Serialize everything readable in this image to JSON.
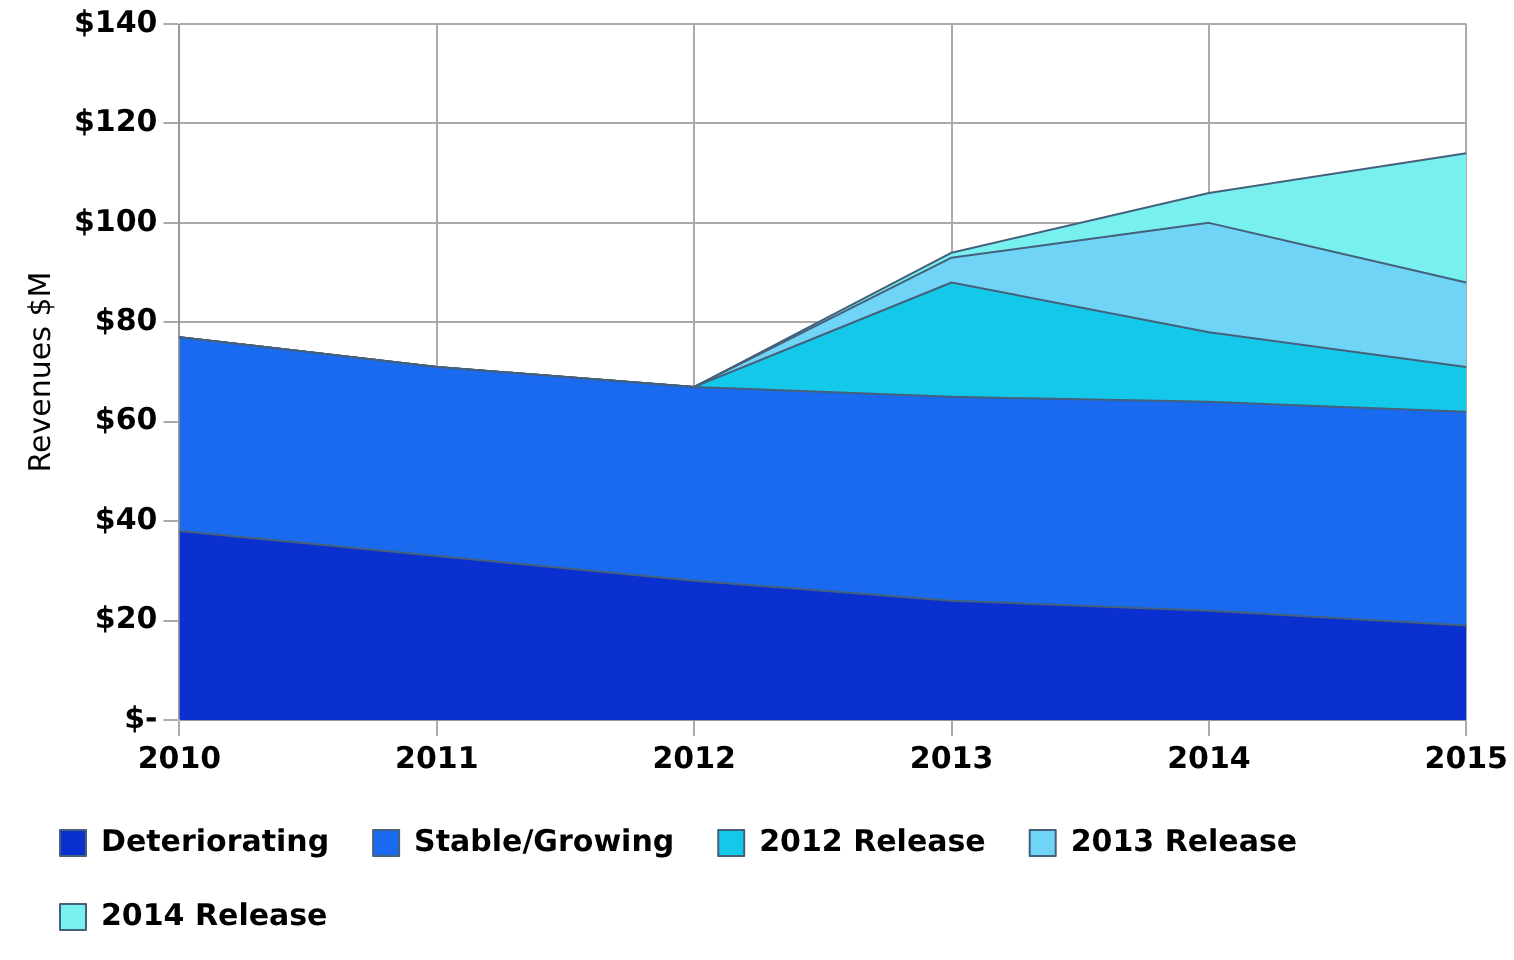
{
  "chart_data": {
    "type": "area",
    "ylabel": "Revenues $M",
    "categories": [
      "2010",
      "2011",
      "2012",
      "2013",
      "2014",
      "2015"
    ],
    "stacked": true,
    "series": [
      {
        "name": "Deteriorating",
        "color": "#0a30d0",
        "values": [
          38,
          33,
          28,
          24,
          22,
          19
        ]
      },
      {
        "name": "Stable/Growing",
        "color": "#1a6af0",
        "values": [
          39,
          38,
          39,
          41,
          42,
          43
        ]
      },
      {
        "name": "2012 Release",
        "color": "#14c8ea",
        "values": [
          0,
          0,
          0,
          23,
          14,
          9
        ]
      },
      {
        "name": "2013 Release",
        "color": "#70d4f6",
        "values": [
          0,
          0,
          0,
          5,
          22,
          17
        ]
      },
      {
        "name": "2014 Release",
        "color": "#78f0f0",
        "values": [
          0,
          0,
          0,
          1,
          6,
          26
        ]
      }
    ],
    "ylim": [
      0,
      140
    ],
    "yticks": [
      {
        "value": 0,
        "label": "$-"
      },
      {
        "value": 20,
        "label": "$20"
      },
      {
        "value": 40,
        "label": "$40"
      },
      {
        "value": 60,
        "label": "$60"
      },
      {
        "value": 80,
        "label": "$80"
      },
      {
        "value": 100,
        "label": "$100"
      },
      {
        "value": 120,
        "label": "$120"
      },
      {
        "value": 140,
        "label": "$140"
      }
    ],
    "grid": true,
    "legend": "bottom"
  }
}
